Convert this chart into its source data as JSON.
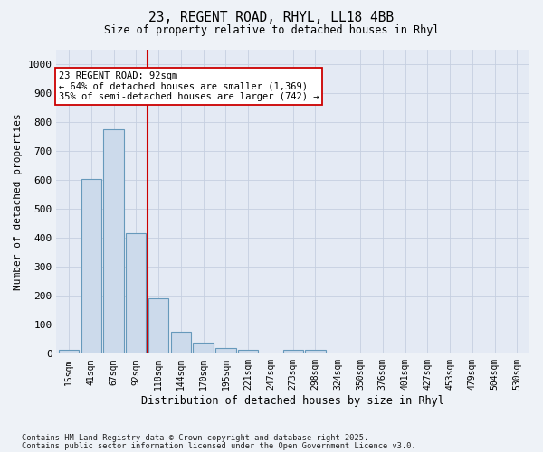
{
  "title_line1": "23, REGENT ROAD, RHYL, LL18 4BB",
  "title_line2": "Size of property relative to detached houses in Rhyl",
  "xlabel": "Distribution of detached houses by size in Rhyl",
  "ylabel": "Number of detached properties",
  "categories": [
    "15sqm",
    "41sqm",
    "67sqm",
    "92sqm",
    "118sqm",
    "144sqm",
    "170sqm",
    "195sqm",
    "221sqm",
    "247sqm",
    "273sqm",
    "298sqm",
    "324sqm",
    "350sqm",
    "376sqm",
    "401sqm",
    "427sqm",
    "453sqm",
    "479sqm",
    "504sqm",
    "530sqm"
  ],
  "values": [
    15,
    605,
    775,
    415,
    190,
    75,
    40,
    20,
    15,
    0,
    15,
    15,
    0,
    0,
    0,
    0,
    0,
    0,
    0,
    0,
    0
  ],
  "bar_color": "#ccdaeb",
  "bar_edge_color": "#6699bb",
  "grid_color": "#c5cfe0",
  "vline_x_index": 3,
  "vline_color": "#cc0000",
  "annotation_text": "23 REGENT ROAD: 92sqm\n← 64% of detached houses are smaller (1,369)\n35% of semi-detached houses are larger (742) →",
  "annotation_box_color": "#ffffff",
  "annotation_box_edge_color": "#cc0000",
  "ylim": [
    0,
    1050
  ],
  "yticks": [
    0,
    100,
    200,
    300,
    400,
    500,
    600,
    700,
    800,
    900,
    1000
  ],
  "footnote_line1": "Contains HM Land Registry data © Crown copyright and database right 2025.",
  "footnote_line2": "Contains public sector information licensed under the Open Government Licence v3.0.",
  "bg_color": "#eef2f7",
  "plot_bg_color": "#e4eaf4"
}
